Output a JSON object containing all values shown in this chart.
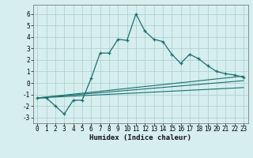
{
  "xlabel": "Humidex (Indice chaleur)",
  "background_color": "#d6eeee",
  "grid_color": "#aacccc",
  "line_color": "#1a7070",
  "xlim": [
    -0.5,
    23.5
  ],
  "ylim": [
    -3.5,
    6.8
  ],
  "yticks": [
    -3,
    -2,
    -1,
    0,
    1,
    2,
    3,
    4,
    5,
    6
  ],
  "xticks": [
    0,
    1,
    2,
    3,
    4,
    5,
    6,
    7,
    8,
    9,
    10,
    11,
    12,
    13,
    14,
    15,
    16,
    17,
    18,
    19,
    20,
    21,
    22,
    23
  ],
  "main_x": [
    0,
    1,
    2,
    3,
    4,
    5,
    6,
    7,
    8,
    9,
    10,
    11,
    12,
    13,
    14,
    15,
    16,
    17,
    18,
    19,
    20,
    21,
    22,
    23
  ],
  "main_y": [
    -1.3,
    -1.3,
    -2.0,
    -2.7,
    -1.5,
    -1.5,
    0.4,
    2.6,
    2.6,
    3.8,
    3.7,
    6.0,
    4.5,
    3.8,
    3.6,
    2.5,
    1.7,
    2.5,
    2.1,
    1.5,
    1.0,
    0.8,
    0.7,
    0.5
  ],
  "line1_x": [
    0,
    23
  ],
  "line1_y": [
    -1.3,
    0.6
  ],
  "line2_x": [
    0,
    23
  ],
  "line2_y": [
    -1.3,
    0.2
  ],
  "line3_x": [
    0,
    23
  ],
  "line3_y": [
    -1.3,
    -0.4
  ]
}
